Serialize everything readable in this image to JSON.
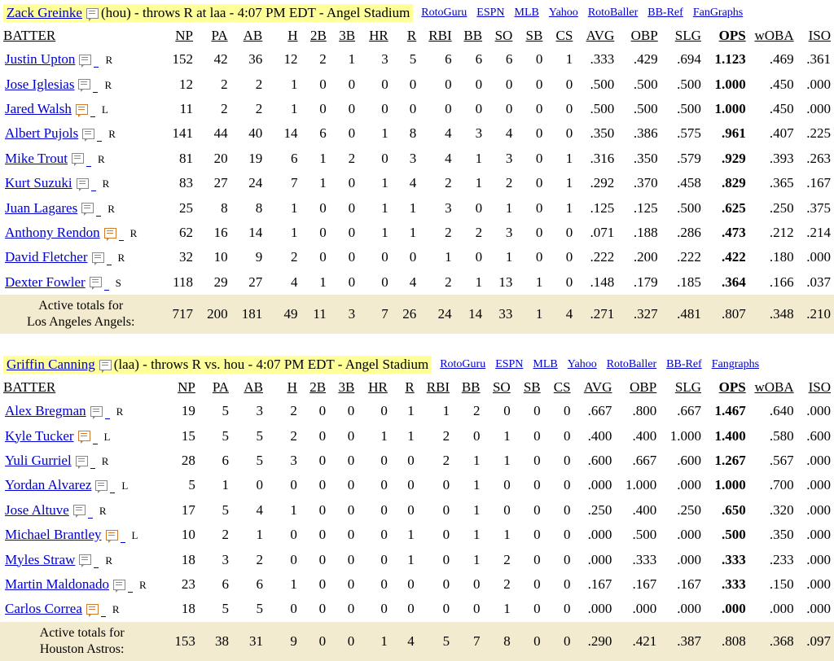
{
  "columns": [
    "NP",
    "PA",
    "AB",
    "H",
    "2B",
    "3B",
    "HR",
    "R",
    "RBI",
    "BB",
    "SO",
    "SB",
    "CS",
    "AVG",
    "OBP",
    "SLG",
    "OPS",
    "wOBA",
    "ISO"
  ],
  "batter_header": "BATTER",
  "link_labels_1": [
    "RotoGuru",
    "ESPN",
    "MLB",
    "Yahoo",
    "RotoBaller",
    "BB-Ref",
    "FanGraphs"
  ],
  "link_labels_2": [
    "RotoGuru",
    "ESPN",
    "MLB",
    "Yahoo",
    "RotoBaller",
    "BB-Ref",
    "Fangraphs"
  ],
  "game1": {
    "pitcher_name": "Zack Greinke",
    "pitcher_info": "(hou) - throws R at laa - 4:07 PM EDT - Angel Stadium",
    "batters": [
      {
        "name": "Justin Upton",
        "hand": "R",
        "hot": false,
        "stats": [
          "152",
          "42",
          "36",
          "12",
          "2",
          "1",
          "3",
          "5",
          "6",
          "6",
          "6",
          "0",
          "1",
          ".333",
          ".429",
          ".694",
          "1.123",
          ".469",
          ".361"
        ]
      },
      {
        "name": "Jose Iglesias",
        "hand": "R",
        "hot": false,
        "stats": [
          "12",
          "2",
          "2",
          "1",
          "0",
          "0",
          "0",
          "0",
          "0",
          "0",
          "0",
          "0",
          "0",
          ".500",
          ".500",
          ".500",
          "1.000",
          ".450",
          ".000"
        ]
      },
      {
        "name": "Jared Walsh",
        "hand": "L",
        "hot": true,
        "stats": [
          "11",
          "2",
          "2",
          "1",
          "0",
          "0",
          "0",
          "0",
          "0",
          "0",
          "0",
          "0",
          "0",
          ".500",
          ".500",
          ".500",
          "1.000",
          ".450",
          ".000"
        ]
      },
      {
        "name": "Albert Pujols",
        "hand": "R",
        "hot": false,
        "stats": [
          "141",
          "44",
          "40",
          "14",
          "6",
          "0",
          "1",
          "8",
          "4",
          "3",
          "4",
          "0",
          "0",
          ".350",
          ".386",
          ".575",
          ".961",
          ".407",
          ".225"
        ]
      },
      {
        "name": "Mike Trout",
        "hand": "R",
        "hot": false,
        "stats": [
          "81",
          "20",
          "19",
          "6",
          "1",
          "2",
          "0",
          "3",
          "4",
          "1",
          "3",
          "0",
          "1",
          ".316",
          ".350",
          ".579",
          ".929",
          ".393",
          ".263"
        ]
      },
      {
        "name": "Kurt Suzuki",
        "hand": "R",
        "hot": false,
        "stats": [
          "83",
          "27",
          "24",
          "7",
          "1",
          "0",
          "1",
          "4",
          "2",
          "1",
          "2",
          "0",
          "1",
          ".292",
          ".370",
          ".458",
          ".829",
          ".365",
          ".167"
        ]
      },
      {
        "name": "Juan Lagares",
        "hand": "R",
        "hot": false,
        "stats": [
          "25",
          "8",
          "8",
          "1",
          "0",
          "0",
          "1",
          "1",
          "3",
          "0",
          "1",
          "0",
          "1",
          ".125",
          ".125",
          ".500",
          ".625",
          ".250",
          ".375"
        ]
      },
      {
        "name": "Anthony Rendon",
        "hand": "R",
        "hot": true,
        "stats": [
          "62",
          "16",
          "14",
          "1",
          "0",
          "0",
          "1",
          "1",
          "2",
          "2",
          "3",
          "0",
          "0",
          ".071",
          ".188",
          ".286",
          ".473",
          ".212",
          ".214"
        ]
      },
      {
        "name": "David Fletcher",
        "hand": "R",
        "hot": false,
        "stats": [
          "32",
          "10",
          "9",
          "2",
          "0",
          "0",
          "0",
          "0",
          "1",
          "0",
          "1",
          "0",
          "0",
          ".222",
          ".200",
          ".222",
          ".422",
          ".180",
          ".000"
        ]
      },
      {
        "name": "Dexter Fowler",
        "hand": "S",
        "hot": false,
        "stats": [
          "118",
          "29",
          "27",
          "4",
          "1",
          "0",
          "0",
          "4",
          "2",
          "1",
          "13",
          "1",
          "0",
          ".148",
          ".179",
          ".185",
          ".364",
          ".166",
          ".037"
        ]
      }
    ],
    "totals_label_1": "Active totals for",
    "totals_label_2": "Los Angeles Angels:",
    "totals": [
      "717",
      "200",
      "181",
      "49",
      "11",
      "3",
      "7",
      "26",
      "24",
      "14",
      "33",
      "1",
      "4",
      ".271",
      ".327",
      ".481",
      ".807",
      ".348",
      ".210"
    ]
  },
  "game2": {
    "pitcher_name": "Griffin Canning",
    "pitcher_info": "(laa) - throws R vs. hou - 4:07 PM EDT - Angel Stadium",
    "batters": [
      {
        "name": "Alex Bregman",
        "hand": "R",
        "hot": false,
        "stats": [
          "19",
          "5",
          "3",
          "2",
          "0",
          "0",
          "0",
          "1",
          "1",
          "2",
          "0",
          "0",
          "0",
          ".667",
          ".800",
          ".667",
          "1.467",
          ".640",
          ".000"
        ]
      },
      {
        "name": "Kyle Tucker",
        "hand": "L",
        "hot": true,
        "stats": [
          "15",
          "5",
          "5",
          "2",
          "0",
          "0",
          "1",
          "1",
          "2",
          "0",
          "1",
          "0",
          "0",
          ".400",
          ".400",
          "1.000",
          "1.400",
          ".580",
          ".600"
        ]
      },
      {
        "name": "Yuli Gurriel",
        "hand": "R",
        "hot": false,
        "stats": [
          "28",
          "6",
          "5",
          "3",
          "0",
          "0",
          "0",
          "0",
          "2",
          "1",
          "1",
          "0",
          "0",
          ".600",
          ".667",
          ".600",
          "1.267",
          ".567",
          ".000"
        ]
      },
      {
        "name": "Yordan Alvarez",
        "hand": "L",
        "hot": false,
        "stats": [
          "5",
          "1",
          "0",
          "0",
          "0",
          "0",
          "0",
          "0",
          "0",
          "1",
          "0",
          "0",
          "0",
          ".000",
          "1.000",
          ".000",
          "1.000",
          ".700",
          ".000"
        ]
      },
      {
        "name": "Jose Altuve",
        "hand": "R",
        "hot": false,
        "stats": [
          "17",
          "5",
          "4",
          "1",
          "0",
          "0",
          "0",
          "0",
          "0",
          "1",
          "0",
          "0",
          "0",
          ".250",
          ".400",
          ".250",
          ".650",
          ".320",
          ".000"
        ]
      },
      {
        "name": "Michael Brantley",
        "hand": "L",
        "hot": true,
        "stats": [
          "10",
          "2",
          "1",
          "0",
          "0",
          "0",
          "0",
          "1",
          "0",
          "1",
          "1",
          "0",
          "0",
          ".000",
          ".500",
          ".000",
          ".500",
          ".350",
          ".000"
        ]
      },
      {
        "name": "Myles Straw",
        "hand": "R",
        "hot": false,
        "stats": [
          "18",
          "3",
          "2",
          "0",
          "0",
          "0",
          "0",
          "1",
          "0",
          "1",
          "2",
          "0",
          "0",
          ".000",
          ".333",
          ".000",
          ".333",
          ".233",
          ".000"
        ]
      },
      {
        "name": "Martin Maldonado",
        "hand": "R",
        "hot": false,
        "stats": [
          "23",
          "6",
          "6",
          "1",
          "0",
          "0",
          "0",
          "0",
          "0",
          "0",
          "2",
          "0",
          "0",
          ".167",
          ".167",
          ".167",
          ".333",
          ".150",
          ".000"
        ]
      },
      {
        "name": "Carlos Correa",
        "hand": "R",
        "hot": true,
        "stats": [
          "18",
          "5",
          "5",
          "0",
          "0",
          "0",
          "0",
          "0",
          "0",
          "0",
          "1",
          "0",
          "0",
          ".000",
          ".000",
          ".000",
          ".000",
          ".000",
          ".000"
        ]
      }
    ],
    "totals_label_1": "Active totals for",
    "totals_label_2": "Houston Astros:",
    "totals": [
      "153",
      "38",
      "31",
      "9",
      "0",
      "0",
      "1",
      "4",
      "5",
      "7",
      "8",
      "0",
      "0",
      ".290",
      ".421",
      ".387",
      ".808",
      ".368",
      ".097"
    ]
  }
}
